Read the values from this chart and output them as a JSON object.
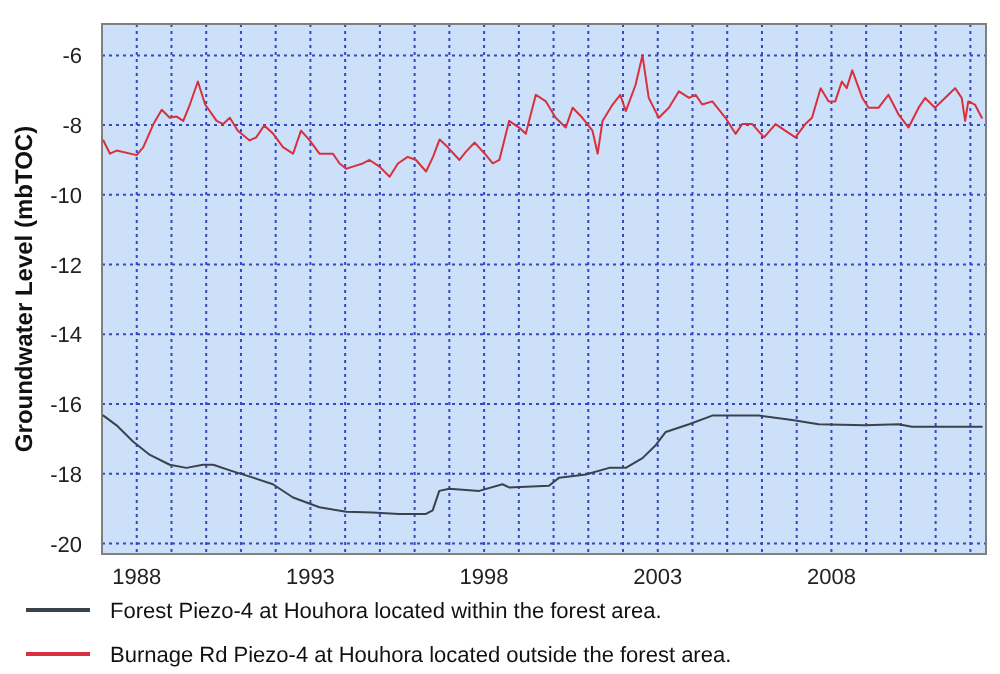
{
  "chart_data": {
    "type": "line",
    "ylabel": "Groundwater Level (mbTOC)",
    "xlim": [
      1987,
      2012.45
    ],
    "ylim": [
      -20.3,
      -5.1
    ],
    "xticks": [
      {
        "value": 1988,
        "label": "1988"
      },
      {
        "value": 1989,
        "label": null
      },
      {
        "value": 1990,
        "label": null
      },
      {
        "value": 1991,
        "label": null
      },
      {
        "value": 1992,
        "label": null
      },
      {
        "value": 1993,
        "label": "1993"
      },
      {
        "value": 1994,
        "label": null
      },
      {
        "value": 1995,
        "label": null
      },
      {
        "value": 1996,
        "label": null
      },
      {
        "value": 1997,
        "label": null
      },
      {
        "value": 1998,
        "label": "1998"
      },
      {
        "value": 1999,
        "label": null
      },
      {
        "value": 2000,
        "label": null
      },
      {
        "value": 2001,
        "label": null
      },
      {
        "value": 2002,
        "label": null
      },
      {
        "value": 2003,
        "label": "2003"
      },
      {
        "value": 2004,
        "label": null
      },
      {
        "value": 2005,
        "label": null
      },
      {
        "value": 2006,
        "label": null
      },
      {
        "value": 2007,
        "label": null
      },
      {
        "value": 2008,
        "label": "2008"
      },
      {
        "value": 2009,
        "label": null
      },
      {
        "value": 2010,
        "label": null
      },
      {
        "value": 2011,
        "label": null
      },
      {
        "value": 2012,
        "label": null
      }
    ],
    "yticks": [
      -6,
      -8,
      -10,
      -12,
      -14,
      -16,
      -18,
      -20
    ],
    "grid": true,
    "legend": "bottom",
    "marker": "none",
    "series": [
      {
        "name": "Forest Piezo-4 at Houhora located within the forest area.",
        "color": "#38434c",
        "x": [
          1987.04,
          1987.42,
          1987.9,
          1988.38,
          1988.95,
          1989.43,
          1989.91,
          1990.2,
          1990.77,
          1991.35,
          1991.92,
          1992.5,
          1993.26,
          1994.03,
          1994.79,
          1995.56,
          1996.33,
          1996.52,
          1996.71,
          1997.0,
          1997.86,
          1998.53,
          1998.72,
          1999.87,
          2000.16,
          2000.93,
          2001.6,
          2002.08,
          2002.56,
          2002.94,
          2003.23,
          2003.9,
          2004.57,
          2005.91,
          2006.87,
          2007.63,
          2008.97,
          2009.93,
          2010.32,
          2012.33
        ],
        "values": [
          -16.33,
          -16.61,
          -17.08,
          -17.46,
          -17.74,
          -17.83,
          -17.74,
          -17.74,
          -17.93,
          -18.11,
          -18.3,
          -18.68,
          -18.96,
          -19.09,
          -19.11,
          -19.15,
          -19.15,
          -19.05,
          -18.49,
          -18.43,
          -18.49,
          -18.3,
          -18.39,
          -18.34,
          -18.11,
          -18.02,
          -17.83,
          -17.83,
          -17.55,
          -17.18,
          -16.8,
          -16.58,
          -16.33,
          -16.33,
          -16.46,
          -16.58,
          -16.61,
          -16.58,
          -16.65,
          -16.65
        ]
      },
      {
        "name": "Burnage Rd Piezo-4 at Houhora located outside the forest area.",
        "color": "#d8303c",
        "x": [
          1987.04,
          1987.23,
          1987.42,
          1988.0,
          1988.19,
          1988.48,
          1988.72,
          1988.95,
          1989.14,
          1989.34,
          1989.53,
          1989.76,
          1989.97,
          1990.3,
          1990.49,
          1990.68,
          1990.91,
          1991.25,
          1991.44,
          1991.67,
          1991.93,
          1992.21,
          1992.5,
          1992.73,
          1992.98,
          1993.26,
          1993.65,
          1993.84,
          1994.03,
          1994.22,
          1994.51,
          1994.7,
          1994.99,
          1995.28,
          1995.52,
          1995.8,
          1996.04,
          1996.33,
          1996.53,
          1996.72,
          1996.95,
          1997.29,
          1997.48,
          1997.73,
          1998.02,
          1998.25,
          1998.44,
          1998.72,
          1999.01,
          1999.2,
          1999.49,
          1999.78,
          2000.06,
          2000.35,
          2000.55,
          2000.83,
          2001.12,
          2001.27,
          2001.41,
          2001.7,
          2001.92,
          2002.08,
          2002.36,
          2002.56,
          2002.74,
          2003.03,
          2003.32,
          2003.61,
          2003.9,
          2004.09,
          2004.28,
          2004.57,
          2004.95,
          2005.24,
          2005.43,
          2005.72,
          2006.06,
          2006.39,
          2006.67,
          2006.96,
          2007.25,
          2007.44,
          2007.69,
          2007.92,
          2008.11,
          2008.3,
          2008.44,
          2008.6,
          2008.89,
          2009.07,
          2009.36,
          2009.64,
          2009.93,
          2010.22,
          2010.51,
          2010.7,
          2010.98,
          2011.27,
          2011.56,
          2011.75,
          2011.85,
          2011.94,
          2012.13,
          2012.33
        ],
        "values": [
          -8.44,
          -8.82,
          -8.73,
          -8.86,
          -8.63,
          -7.97,
          -7.56,
          -7.79,
          -7.75,
          -7.88,
          -7.41,
          -6.75,
          -7.41,
          -7.88,
          -7.97,
          -7.79,
          -8.16,
          -8.44,
          -8.35,
          -8.01,
          -8.25,
          -8.63,
          -8.82,
          -8.16,
          -8.44,
          -8.82,
          -8.82,
          -9.1,
          -9.25,
          -9.19,
          -9.1,
          -9.0,
          -9.19,
          -9.48,
          -9.1,
          -8.91,
          -9.0,
          -9.33,
          -8.91,
          -8.41,
          -8.63,
          -9.0,
          -8.76,
          -8.5,
          -8.82,
          -9.1,
          -9.0,
          -7.88,
          -8.07,
          -8.25,
          -7.13,
          -7.32,
          -7.79,
          -8.07,
          -7.5,
          -7.79,
          -8.16,
          -8.82,
          -7.88,
          -7.41,
          -7.13,
          -7.6,
          -6.85,
          -6.0,
          -7.22,
          -7.79,
          -7.5,
          -7.03,
          -7.22,
          -7.13,
          -7.41,
          -7.32,
          -7.79,
          -8.25,
          -7.97,
          -7.97,
          -8.35,
          -7.97,
          -8.16,
          -8.35,
          -7.97,
          -7.79,
          -6.94,
          -7.32,
          -7.32,
          -6.75,
          -6.94,
          -6.43,
          -7.22,
          -7.5,
          -7.5,
          -7.13,
          -7.69,
          -8.07,
          -7.5,
          -7.22,
          -7.5,
          -7.22,
          -6.94,
          -7.22,
          -7.88,
          -7.32,
          -7.41,
          -7.79
        ]
      }
    ]
  }
}
